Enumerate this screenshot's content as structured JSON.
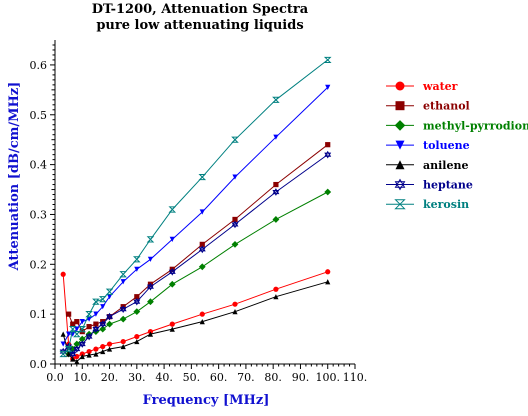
{
  "chart_data": {
    "type": "line",
    "title": "DT-1200, Attenuation Spectra",
    "subtitle": "pure low attenuating liquids",
    "xlabel": "Frequency [MHz]",
    "ylabel": "Attenuation [dB/cm/MHz]",
    "xlim": [
      0,
      110
    ],
    "ylim": [
      0,
      0.65
    ],
    "x_ticks": [
      "0.0",
      "10.",
      "20.",
      "30.",
      "40.",
      "50.",
      "60.",
      "70.",
      "80.",
      "90.",
      "100.",
      "110."
    ],
    "y_ticks": [
      "0.0",
      "0.1",
      "0.2",
      "0.3",
      "0.4",
      "0.5",
      "0.6"
    ],
    "legend_position": "right",
    "series": [
      {
        "name": "water",
        "color": "#ff0000",
        "marker": "circle",
        "x": [
          3,
          5,
          6.5,
          8,
          10,
          12.5,
          15,
          17.5,
          20,
          25,
          30,
          35,
          43,
          54,
          66,
          81,
          100
        ],
        "y": [
          0.18,
          0.04,
          0.01,
          0.015,
          0.02,
          0.025,
          0.03,
          0.035,
          0.04,
          0.045,
          0.055,
          0.065,
          0.08,
          0.1,
          0.12,
          0.15,
          0.185
        ]
      },
      {
        "name": "ethanol",
        "color": "#8b0000",
        "marker": "square",
        "x": [
          5,
          6.5,
          8,
          10,
          12.5,
          15,
          17.5,
          20,
          25,
          30,
          35,
          43,
          54,
          66,
          81,
          100
        ],
        "y": [
          0.1,
          0.08,
          0.085,
          0.065,
          0.075,
          0.08,
          0.085,
          0.095,
          0.115,
          0.135,
          0.16,
          0.19,
          0.24,
          0.29,
          0.36,
          0.44
        ]
      },
      {
        "name": "methyl-pyrrodione",
        "color": "#008000",
        "marker": "diamond",
        "x": [
          5,
          6.5,
          8,
          10,
          12.5,
          15,
          17.5,
          20,
          25,
          30,
          35,
          43,
          54,
          66,
          81,
          100
        ],
        "y": [
          0.02,
          0.03,
          0.04,
          0.05,
          0.06,
          0.065,
          0.07,
          0.08,
          0.09,
          0.105,
          0.125,
          0.16,
          0.195,
          0.24,
          0.29,
          0.345
        ]
      },
      {
        "name": "toluene",
        "color": "#0000ff",
        "marker": "triangle-down",
        "x": [
          3,
          5,
          6.5,
          8,
          10,
          12.5,
          15,
          17.5,
          20,
          25,
          30,
          35,
          43,
          54,
          66,
          81,
          100
        ],
        "y": [
          0.04,
          0.06,
          0.06,
          0.07,
          0.085,
          0.09,
          0.1,
          0.115,
          0.135,
          0.165,
          0.19,
          0.21,
          0.25,
          0.305,
          0.375,
          0.455,
          0.555
        ]
      },
      {
        "name": "anilene",
        "color": "#000000",
        "marker": "triangle-up",
        "x": [
          3,
          5,
          6.5,
          8,
          10,
          12.5,
          15,
          17.5,
          20,
          25,
          30,
          35,
          43,
          54,
          66,
          81,
          100
        ],
        "y": [
          0.06,
          0.02,
          0.01,
          0.005,
          0.015,
          0.018,
          0.02,
          0.025,
          0.03,
          0.035,
          0.045,
          0.06,
          0.07,
          0.085,
          0.105,
          0.135,
          0.165
        ]
      },
      {
        "name": "heptane",
        "color": "#00008b",
        "marker": "star",
        "x": [
          3,
          5,
          6.5,
          8,
          10,
          12.5,
          15,
          17.5,
          20,
          25,
          30,
          35,
          43,
          54,
          66,
          81,
          100
        ],
        "y": [
          0.025,
          0.035,
          0.02,
          0.03,
          0.04,
          0.055,
          0.07,
          0.08,
          0.095,
          0.11,
          0.125,
          0.155,
          0.185,
          0.23,
          0.28,
          0.345,
          0.42
        ]
      },
      {
        "name": "kerosin",
        "color": "#008080",
        "marker": "hourglass",
        "x": [
          3,
          5,
          6.5,
          8,
          10,
          12.5,
          15,
          17.5,
          20,
          25,
          30,
          35,
          43,
          54,
          66,
          81,
          100
        ],
        "y": [
          0.02,
          0.03,
          0.07,
          0.06,
          0.07,
          0.1,
          0.125,
          0.13,
          0.145,
          0.18,
          0.21,
          0.25,
          0.31,
          0.375,
          0.45,
          0.53,
          0.61
        ]
      }
    ]
  }
}
